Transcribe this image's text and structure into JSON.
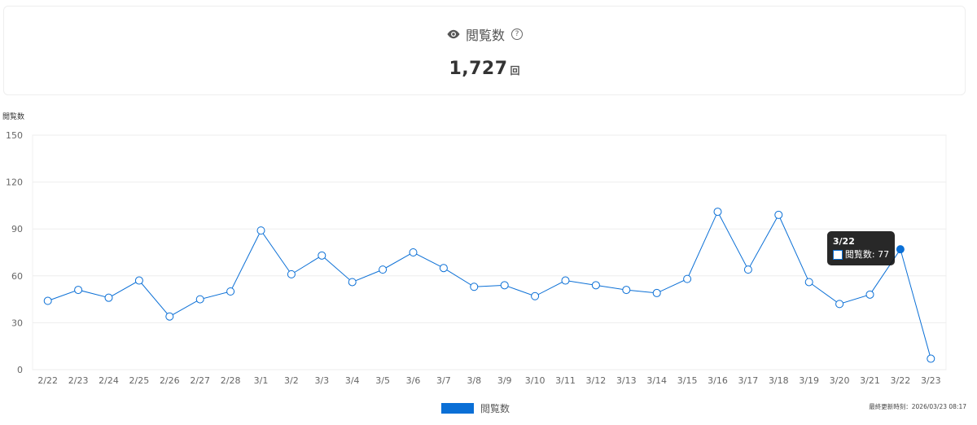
{
  "summary": {
    "title": "閲覧数",
    "help_icon": "question-circle-icon",
    "view_icon": "eye-icon",
    "value": "1,727",
    "unit": "回"
  },
  "chart_data": {
    "type": "line",
    "ylabel": "閲覧数",
    "xlabel": "",
    "ylim": [
      0,
      150
    ],
    "yticks": [
      0,
      30,
      60,
      90,
      120,
      150
    ],
    "grid": true,
    "legend_position": "bottom-center",
    "categories": [
      "2/22",
      "2/23",
      "2/24",
      "2/25",
      "2/26",
      "2/27",
      "2/28",
      "3/1",
      "3/2",
      "3/3",
      "3/4",
      "3/5",
      "3/6",
      "3/7",
      "3/8",
      "3/9",
      "3/10",
      "3/11",
      "3/12",
      "3/13",
      "3/14",
      "3/15",
      "3/16",
      "3/17",
      "3/18",
      "3/19",
      "3/20",
      "3/21",
      "3/22",
      "3/23"
    ],
    "series": [
      {
        "name": "閲覧数",
        "color": "#0a6fd6",
        "values": [
          44,
          51,
          46,
          57,
          34,
          45,
          50,
          89,
          61,
          73,
          56,
          64,
          75,
          65,
          53,
          54,
          47,
          57,
          54,
          51,
          49,
          58,
          101,
          64,
          99,
          56,
          42,
          48,
          77,
          7
        ]
      }
    ],
    "tooltip": {
      "category": "3/22",
      "label": "閲覧数: 77",
      "highlighted_index": 28
    }
  },
  "legend": {
    "label": "閲覧数"
  },
  "footer": {
    "updated": "最終更新時刻：2026/03/23 08:17"
  }
}
